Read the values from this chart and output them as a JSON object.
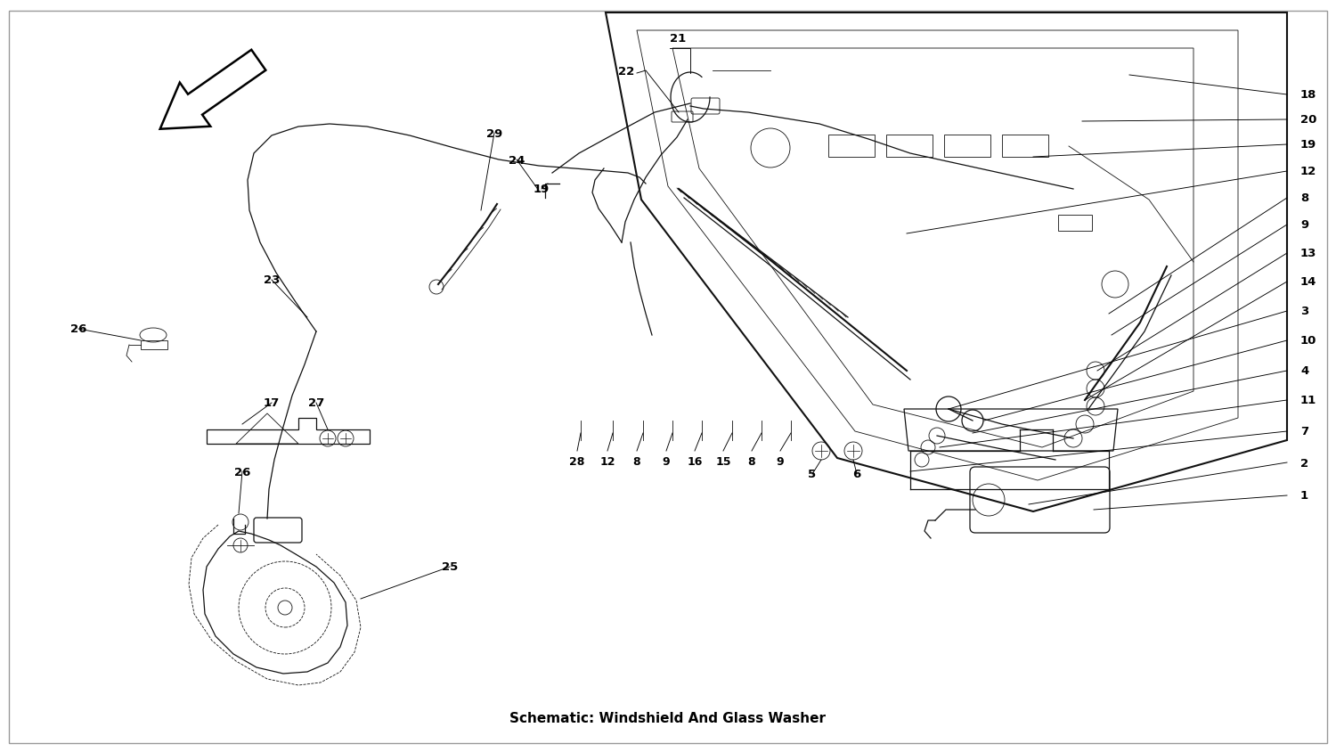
{
  "title": "Schematic: Windshield And Glass Washer",
  "bg_color": "#ffffff",
  "lc": "#111111",
  "fig_width": 15.0,
  "fig_height": 8.45,
  "right_labels": [
    [
      "18",
      14.55,
      7.38
    ],
    [
      "20",
      14.55,
      7.1
    ],
    [
      "19",
      14.55,
      6.82
    ],
    [
      "12",
      14.55,
      6.52
    ],
    [
      "8",
      14.55,
      6.22
    ],
    [
      "9",
      14.55,
      5.92
    ],
    [
      "13",
      14.55,
      5.6
    ],
    [
      "14",
      14.55,
      5.28
    ],
    [
      "3",
      14.55,
      4.95
    ],
    [
      "10",
      14.55,
      4.62
    ],
    [
      "4",
      14.55,
      4.28
    ],
    [
      "11",
      14.55,
      3.95
    ],
    [
      "7",
      14.55,
      3.6
    ],
    [
      "2",
      14.55,
      3.25
    ],
    [
      "1",
      14.55,
      2.88
    ]
  ],
  "top_labels": [
    [
      "21",
      7.52,
      7.95
    ],
    [
      "22",
      7.15,
      7.62
    ]
  ],
  "bottom_labels": [
    [
      "28",
      6.48,
      3.42
    ],
    [
      "12",
      6.82,
      3.42
    ],
    [
      "8",
      7.15,
      3.42
    ],
    [
      "9",
      7.48,
      3.42
    ],
    [
      "16",
      7.8,
      3.42
    ],
    [
      "15",
      8.12,
      3.42
    ],
    [
      "8",
      8.44,
      3.42
    ],
    [
      "9",
      8.76,
      3.42
    ]
  ],
  "scatter_labels": [
    [
      "29",
      5.55,
      6.92
    ],
    [
      "24",
      5.82,
      6.62
    ],
    [
      "19",
      6.08,
      6.32
    ],
    [
      "23",
      3.05,
      5.28
    ],
    [
      "26",
      0.88,
      4.72
    ],
    [
      "17",
      3.05,
      3.88
    ],
    [
      "27",
      3.55,
      3.88
    ],
    [
      "26",
      2.72,
      3.12
    ],
    [
      "25",
      5.05,
      2.05
    ],
    [
      "5",
      9.12,
      3.1
    ],
    [
      "6",
      9.62,
      3.1
    ]
  ]
}
